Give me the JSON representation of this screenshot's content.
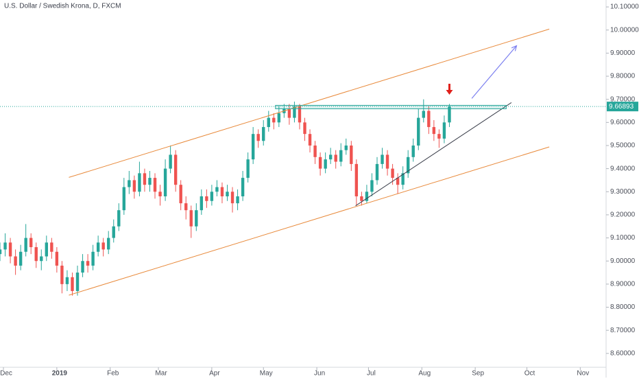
{
  "chart_data": {
    "type": "candlestick",
    "title": "U.S. Dollar / Swedish Krona, D, FXCM",
    "up_color": "#26a69a",
    "down_color": "#ef5350",
    "grid": false,
    "xlim": [
      -33,
      319
    ],
    "ylim": [
      8.54,
      10.13
    ],
    "xticks": [
      {
        "value": -31,
        "label": "Dec"
      },
      {
        "value": 0,
        "label": "2019"
      },
      {
        "value": 31,
        "label": "Feb"
      },
      {
        "value": 59,
        "label": "Mar"
      },
      {
        "value": 90,
        "label": "Apr"
      },
      {
        "value": 120,
        "label": "May"
      },
      {
        "value": 151,
        "label": "Jun"
      },
      {
        "value": 181,
        "label": "Jul"
      },
      {
        "value": 212,
        "label": "Aug"
      },
      {
        "value": 243,
        "label": "Sep"
      },
      {
        "value": 273,
        "label": "Oct"
      },
      {
        "value": 304,
        "label": "Nov"
      }
    ],
    "yticks": [
      {
        "value": 8.6,
        "label": "8.60000"
      },
      {
        "value": 8.7,
        "label": "8.70000"
      },
      {
        "value": 8.8,
        "label": "8.80000"
      },
      {
        "value": 8.9,
        "label": "8.90000"
      },
      {
        "value": 9.0,
        "label": "9.00000"
      },
      {
        "value": 9.1,
        "label": "9.10000"
      },
      {
        "value": 9.2,
        "label": "9.20000"
      },
      {
        "value": 9.3,
        "label": "9.30000"
      },
      {
        "value": 9.4,
        "label": "9.40000"
      },
      {
        "value": 9.5,
        "label": "9.50000"
      },
      {
        "value": 9.6,
        "label": "9.60000"
      },
      {
        "value": 9.7,
        "label": "9.70000"
      },
      {
        "value": 9.8,
        "label": "9.80000"
      },
      {
        "value": 9.9,
        "label": "9.90000"
      },
      {
        "value": 10.0,
        "label": "10.00000"
      },
      {
        "value": 10.1,
        "label": "10.10000"
      }
    ],
    "last_price": 9.66893,
    "x": [
      -33,
      -30,
      -27,
      -24,
      -21,
      -18,
      -15,
      -12,
      -9,
      -6,
      -3,
      0,
      3,
      6,
      9,
      12,
      15,
      18,
      21,
      24,
      27,
      30,
      33,
      36,
      39,
      42,
      45,
      48,
      51,
      54,
      57,
      60,
      63,
      66,
      69,
      72,
      75,
      78,
      81,
      84,
      87,
      90,
      93,
      96,
      99,
      102,
      105,
      108,
      111,
      114,
      117,
      120,
      123,
      126,
      129,
      132,
      135,
      138,
      141,
      144,
      147,
      150,
      153,
      156,
      159,
      162,
      165,
      168,
      171,
      174,
      177,
      180,
      183,
      186,
      189,
      192,
      195,
      198,
      201,
      204,
      207,
      210,
      213,
      216,
      219,
      222,
      225,
      228
    ],
    "open": [
      9.03,
      9.05,
      9.08,
      9.02,
      8.98,
      9.04,
      9.1,
      9.06,
      9.0,
      9.02,
      9.08,
      9.04,
      8.98,
      8.9,
      8.93,
      8.87,
      8.95,
      9.0,
      8.98,
      9.04,
      9.08,
      9.05,
      9.1,
      9.15,
      9.22,
      9.32,
      9.35,
      9.3,
      9.38,
      9.33,
      9.36,
      9.3,
      9.28,
      9.4,
      9.46,
      9.33,
      9.25,
      9.22,
      9.15,
      9.22,
      9.28,
      9.26,
      9.3,
      9.32,
      9.28,
      9.3,
      9.25,
      9.28,
      9.36,
      9.44,
      9.55,
      9.52,
      9.58,
      9.62,
      9.6,
      9.64,
      9.66,
      9.62,
      9.67,
      9.6,
      9.55,
      9.5,
      9.45,
      9.4,
      9.44,
      9.46,
      9.43,
      9.48,
      9.5,
      9.42,
      9.28,
      9.26,
      9.3,
      9.35,
      9.42,
      9.46,
      9.4,
      9.36,
      9.33,
      9.38,
      9.45,
      9.5,
      9.62,
      9.65,
      9.58,
      9.55,
      9.53,
      9.6
    ],
    "high": [
      9.08,
      9.12,
      9.1,
      9.05,
      9.07,
      9.16,
      9.12,
      9.08,
      9.05,
      9.11,
      9.1,
      9.06,
      9.0,
      8.96,
      8.95,
      8.98,
      9.03,
      9.03,
      9.07,
      9.11,
      9.1,
      9.13,
      9.18,
      9.25,
      9.36,
      9.39,
      9.37,
      9.43,
      9.4,
      9.39,
      9.38,
      9.33,
      9.44,
      9.5,
      9.48,
      9.35,
      9.28,
      9.24,
      9.25,
      9.31,
      9.31,
      9.33,
      9.35,
      9.34,
      9.33,
      9.32,
      9.31,
      9.39,
      9.47,
      9.58,
      9.57,
      9.61,
      9.65,
      9.64,
      9.67,
      9.68,
      9.68,
      9.69,
      9.68,
      9.62,
      9.57,
      9.52,
      9.47,
      9.47,
      9.49,
      9.48,
      9.51,
      9.53,
      9.52,
      9.44,
      9.3,
      9.33,
      9.38,
      9.45,
      9.49,
      9.48,
      9.42,
      9.38,
      9.41,
      9.48,
      9.53,
      9.66,
      9.7,
      9.67,
      9.61,
      9.57,
      9.63,
      9.68
    ],
    "low": [
      9.0,
      9.02,
      8.99,
      8.94,
      8.96,
      9.02,
      9.03,
      8.97,
      8.96,
      9.0,
      9.01,
      8.95,
      8.86,
      8.87,
      8.85,
      8.85,
      8.93,
      8.95,
      8.96,
      9.02,
      9.02,
      9.03,
      9.08,
      9.13,
      9.2,
      9.29,
      9.27,
      9.28,
      9.3,
      9.3,
      9.27,
      9.24,
      9.26,
      9.38,
      9.3,
      9.22,
      9.18,
      9.1,
      9.13,
      9.2,
      9.23,
      9.24,
      9.28,
      9.25,
      9.26,
      9.21,
      9.22,
      9.26,
      9.34,
      9.42,
      9.49,
      9.5,
      9.56,
      9.57,
      9.58,
      9.62,
      9.59,
      9.6,
      9.57,
      9.52,
      9.47,
      9.42,
      9.37,
      9.38,
      9.42,
      9.4,
      9.41,
      9.46,
      9.39,
      9.24,
      9.24,
      9.25,
      9.28,
      9.33,
      9.4,
      9.37,
      9.33,
      9.29,
      9.31,
      9.36,
      9.43,
      9.48,
      9.6,
      9.55,
      9.52,
      9.49,
      9.51,
      9.58
    ],
    "close": [
      9.05,
      9.08,
      9.02,
      8.98,
      9.04,
      9.1,
      9.06,
      9.0,
      9.02,
      9.08,
      9.04,
      8.98,
      8.9,
      8.93,
      8.87,
      8.95,
      9.0,
      8.98,
      9.04,
      9.08,
      9.05,
      9.1,
      9.15,
      9.22,
      9.32,
      9.35,
      9.3,
      9.38,
      9.33,
      9.36,
      9.3,
      9.28,
      9.4,
      9.46,
      9.33,
      9.25,
      9.22,
      9.15,
      9.22,
      9.28,
      9.26,
      9.3,
      9.32,
      9.28,
      9.3,
      9.25,
      9.28,
      9.36,
      9.44,
      9.55,
      9.52,
      9.58,
      9.62,
      9.6,
      9.64,
      9.66,
      9.62,
      9.67,
      9.6,
      9.55,
      9.5,
      9.45,
      9.4,
      9.44,
      9.46,
      9.43,
      9.48,
      9.5,
      9.42,
      9.28,
      9.26,
      9.3,
      9.35,
      9.42,
      9.46,
      9.4,
      9.36,
      9.33,
      9.38,
      9.45,
      9.5,
      9.62,
      9.65,
      9.58,
      9.55,
      9.53,
      9.6,
      9.669
    ],
    "drawings": {
      "upper_channel": {
        "x": [
          7,
          286
        ],
        "y": [
          9.362,
          10.004
        ],
        "color": "#e8893a"
      },
      "lower_channel": {
        "x": [
          7,
          286
        ],
        "y": [
          8.852,
          9.494
        ],
        "color": "#e8893a"
      },
      "support_line": {
        "x": [
          173.5,
          264
        ],
        "y": [
          9.239,
          9.686
        ],
        "color": "#3a3e4a"
      },
      "resistance_box": {
        "x": [
          127,
          261
        ],
        "y": [
          9.659,
          9.674
        ],
        "color": "#26a69a"
      },
      "projection_arrow": {
        "x": [
          241,
          267
        ],
        "y": [
          9.704,
          9.932
        ],
        "color": "#7b7ff0"
      },
      "signal_arrow": {
        "x": [
          228
        ],
        "y": [
          9.72
        ],
        "color": "#e0201b"
      }
    }
  }
}
